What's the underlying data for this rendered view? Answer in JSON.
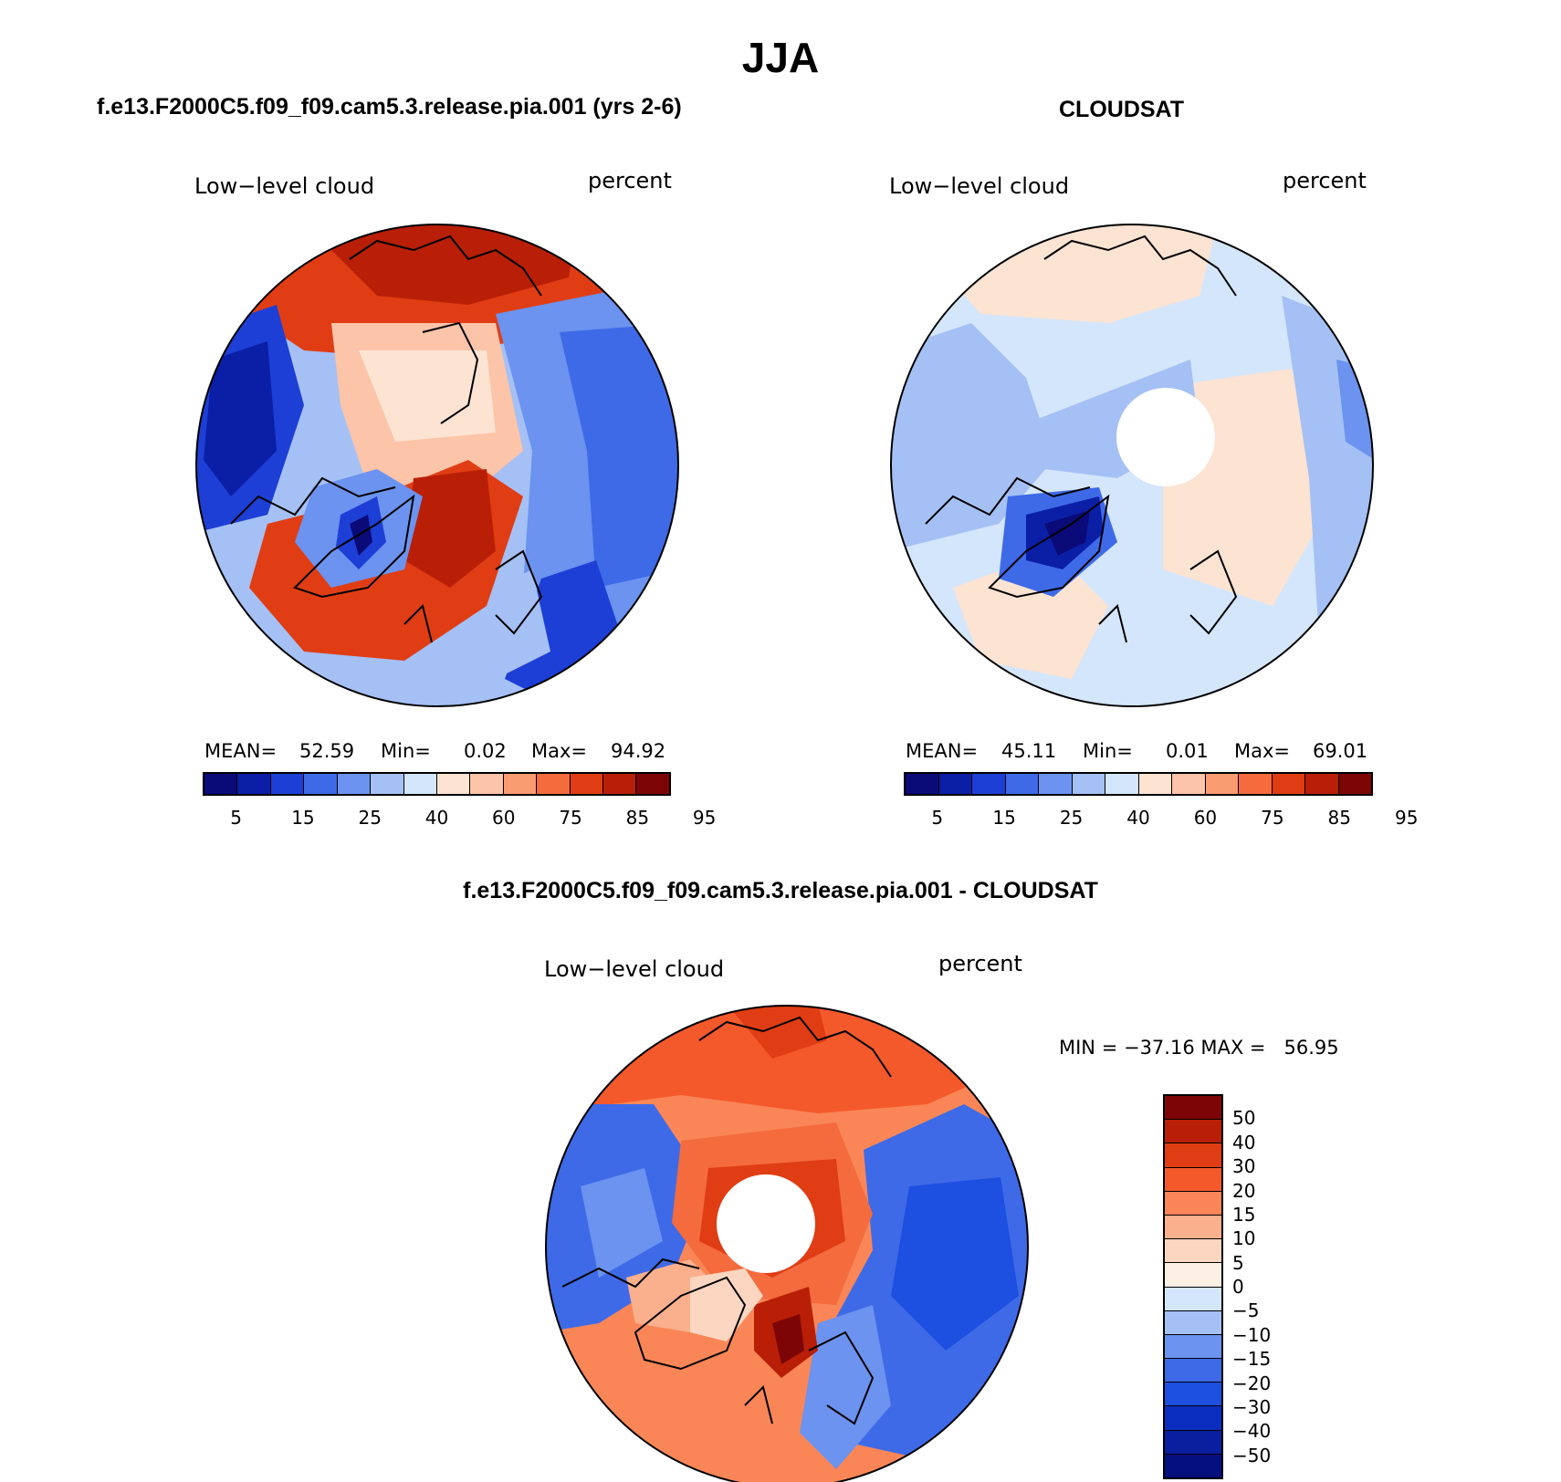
{
  "figure": {
    "season": "JJA",
    "panels": [
      {
        "id": "model",
        "title": "f.e13.F2000C5.f09_f09.cam5.3.release.pia.001 (yrs 2-6)",
        "left_label": "Low−level cloud",
        "right_label": "percent",
        "stats": {
          "mean_label": "MEAN=",
          "mean": "52.59",
          "min_label": "Min=",
          "min": "0.02",
          "max_label": "Max=",
          "max": "94.92"
        }
      },
      {
        "id": "obs",
        "title": "CLOUDSAT",
        "left_label": "Low−level cloud",
        "right_label": "percent",
        "stats": {
          "mean_label": "MEAN=",
          "mean": "45.11",
          "min_label": "Min=",
          "min": "0.01",
          "max_label": "Max=",
          "max": "69.01"
        }
      },
      {
        "id": "diff",
        "title": "f.e13.F2000C5.f09_f09.cam5.3.release.pia.001 - CLOUDSAT",
        "left_label": "Low−level cloud",
        "right_label": "percent",
        "minmax": "MIN = −37.16 MAX =   56.95"
      }
    ],
    "colorbar_abs": {
      "colors": [
        "#0a0a78",
        "#0b1ea6",
        "#1d3fd6",
        "#3e6ae8",
        "#6b93ef",
        "#a5c0f5",
        "#d4e6fb",
        "#fce3d2",
        "#fcc4a8",
        "#fa9c72",
        "#f46b3e",
        "#e03d14",
        "#b81f06",
        "#7e0505"
      ],
      "ticks": [
        "5",
        "15",
        "25",
        "40",
        "60",
        "75",
        "85",
        "95"
      ]
    },
    "colorbar_diff": {
      "colors": [
        "#7e0505",
        "#b81f06",
        "#e03d14",
        "#f4592c",
        "#fa8657",
        "#fbb08d",
        "#fcd6c0",
        "#fcefe4",
        "#d4e6fb",
        "#a5c0f5",
        "#6b93ef",
        "#3e6ae8",
        "#1d4fe0",
        "#0b2ec0",
        "#0a1ea0",
        "#060f7e"
      ],
      "ticks": [
        "50",
        "40",
        "30",
        "20",
        "15",
        "10",
        "5",
        "0",
        "−5",
        "−10",
        "−15",
        "−20",
        "−30",
        "−40",
        "−50"
      ]
    }
  }
}
